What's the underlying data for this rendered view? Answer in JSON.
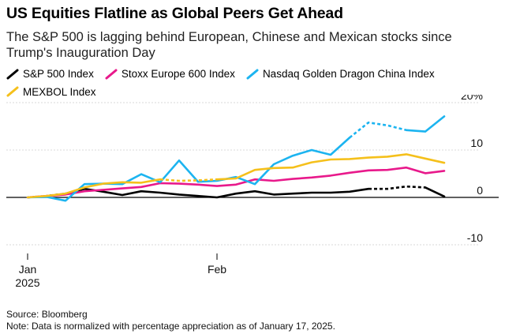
{
  "title": "US Equities Flatline as Global Peers Get Ahead",
  "subtitle": "The S&P 500 is lagging behind European, Chinese and Mexican stocks since Trump's Inauguration Day",
  "source": "Source: Bloomberg",
  "note": "Note: Data is normalized with percentage appreciation as of January 17, 2025.",
  "chart_data": {
    "type": "line",
    "title": "US Equities Flatline as Global Peers Get Ahead",
    "xlabel": "",
    "ylabel": "",
    "ylim": [
      -10,
      20
    ],
    "yticks": [
      {
        "value": 20,
        "label": "20%"
      },
      {
        "value": 10,
        "label": "10"
      },
      {
        "value": 0,
        "label": "0"
      },
      {
        "value": -10,
        "label": "-10"
      }
    ],
    "x_range": [
      0,
      22
    ],
    "xticks": [
      {
        "x": 0,
        "label": "Jan",
        "sublabel": "2025"
      },
      {
        "x": 10,
        "label": "Feb",
        "sublabel": ""
      }
    ],
    "x": [
      0,
      1,
      2,
      3,
      4,
      5,
      6,
      7,
      8,
      9,
      10,
      11,
      12,
      13,
      14,
      15,
      16,
      17,
      18,
      19,
      20,
      21,
      22
    ],
    "series": [
      {
        "name": "S&P 500 Index",
        "color": "#000000",
        "values": [
          0,
          0.3,
          0.8,
          1.8,
          1.2,
          0.5,
          1.3,
          1.0,
          0.6,
          0.3,
          0,
          0.8,
          1.3,
          0.6,
          0.8,
          1.0,
          1.0,
          1.2,
          1.8,
          1.8,
          2.3,
          2.1,
          0.2
        ],
        "dashed_segments": [
          [
            0,
            2
          ],
          [
            18,
            21
          ]
        ]
      },
      {
        "name": "Stoxx Europe 600 Index",
        "color": "#e8198b",
        "values": [
          0,
          0.3,
          0.6,
          1.3,
          1.6,
          1.9,
          2.2,
          3.0,
          2.9,
          2.7,
          2.4,
          2.7,
          3.8,
          3.5,
          3.9,
          4.2,
          4.6,
          5.2,
          5.7,
          5.8,
          6.3,
          5.1,
          5.6
        ],
        "dashed_segments": []
      },
      {
        "name": "Nasdaq Golden Dragon China Index",
        "color": "#1cb4f0",
        "values": [
          0,
          0.1,
          -0.7,
          2.8,
          2.9,
          2.8,
          4.9,
          3.2,
          7.8,
          3.3,
          3.5,
          4.3,
          2.8,
          7.0,
          8.8,
          10.0,
          9.0,
          12.6,
          15.8,
          15.2,
          14.2,
          13.9,
          17.1
        ],
        "dashed_segments": [
          [
            17,
            20
          ]
        ]
      },
      {
        "name": "MEXBOL Index",
        "color": "#f5c01b",
        "values": [
          0,
          0.3,
          0.8,
          2.1,
          2.9,
          3.2,
          3.1,
          3.8,
          3.5,
          3.6,
          3.8,
          4.0,
          5.8,
          6.2,
          6.3,
          7.4,
          8.0,
          8.1,
          8.4,
          8.6,
          9.1,
          8.2,
          7.3
        ],
        "dashed_segments": [
          [
            7,
            10
          ]
        ]
      }
    ]
  }
}
